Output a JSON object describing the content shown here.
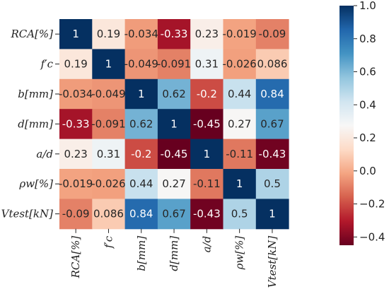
{
  "chart_data": {
    "type": "heatmap",
    "labels": [
      "RCA[%]",
      "f′c",
      "b[mm]",
      "d[mm]",
      "a/d",
      "ρw[%]",
      "Vtest[kN]"
    ],
    "matrix": [
      [
        1,
        0.19,
        -0.034,
        -0.33,
        0.23,
        -0.019,
        -0.09
      ],
      [
        0.19,
        1,
        -0.049,
        -0.091,
        0.31,
        -0.026,
        0.086
      ],
      [
        -0.034,
        -0.049,
        1,
        0.62,
        -0.2,
        0.44,
        0.84
      ],
      [
        -0.33,
        -0.091,
        0.62,
        1,
        -0.45,
        0.27,
        0.67
      ],
      [
        0.23,
        0.31,
        -0.2,
        -0.45,
        1,
        -0.11,
        -0.43
      ],
      [
        -0.019,
        -0.026,
        0.44,
        0.27,
        -0.11,
        1,
        0.5
      ],
      [
        -0.09,
        0.086,
        0.84,
        0.67,
        -0.43,
        0.5,
        1
      ]
    ],
    "cell_labels": [
      [
        "1",
        "0.19",
        "-0.034",
        "-0.33",
        "0.23",
        "-0.019",
        "-0.09"
      ],
      [
        "0.19",
        "1",
        "-0.049",
        "-0.091",
        "0.31",
        "-0.026",
        "0.086"
      ],
      [
        "-0.034",
        "-0.049",
        "1",
        "0.62",
        "-0.2",
        "0.44",
        "0.84"
      ],
      [
        "-0.33",
        "-0.091",
        "0.62",
        "1",
        "-0.45",
        "0.27",
        "0.67"
      ],
      [
        "0.23",
        "0.31",
        "-0.2",
        "-0.45",
        "1",
        "-0.11",
        "-0.43"
      ],
      [
        "-0.019",
        "-0.026",
        "0.44",
        "0.27",
        "-0.11",
        "1",
        "0.5"
      ],
      [
        "-0.09",
        "0.086",
        "0.84",
        "0.67",
        "-0.43",
        "0.5",
        "1"
      ]
    ],
    "colorbar": {
      "min": -0.45,
      "max": 1.0,
      "ticks": [
        1.0,
        0.8,
        0.6,
        0.4,
        0.2,
        0.0,
        -0.2,
        -0.4
      ],
      "tick_labels": [
        "1.0",
        "0.8",
        "0.6",
        "0.4",
        "0.2",
        "0.0",
        "−0.2",
        "−0.4"
      ],
      "colormap": "RdBu"
    }
  }
}
